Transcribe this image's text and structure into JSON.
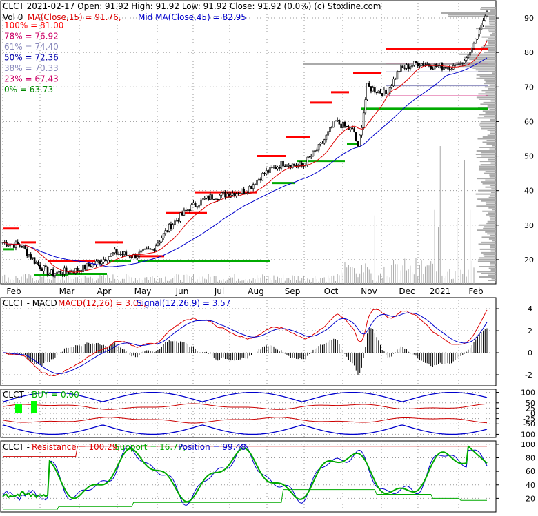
{
  "header": {
    "line1": "CLCT  2021-02-17 Open: 91.92  High: 91.92  Low: 91.92  Close: 91.92 (0.0%)  (c) Stoxline.com",
    "vol": "Vol 0",
    "ma_fast_label": "MA(Close,15) = 91.76,",
    "ma_slow_label": "Mid MA(Close,45) = 82.95"
  },
  "fib_levels": [
    {
      "label": "100% = 81.00",
      "color": "#ff0000"
    },
    {
      "label": "78% = 76.92",
      "color": "#cc0066"
    },
    {
      "label": "61% = 74.40",
      "color": "#8888bb"
    },
    {
      "label": "50% = 72.36",
      "color": "#0000aa"
    },
    {
      "label": "38% = 70.33",
      "color": "#8888bb"
    },
    {
      "label": "23% = 67.43",
      "color": "#cc0066"
    },
    {
      "label": "0% = 63.73",
      "color": "#008800"
    }
  ],
  "colors": {
    "ma_fast": "#dd0000",
    "ma_slow": "#0000cc",
    "resistance": "#ff0000",
    "support": "#00aa00",
    "grid": "#999999",
    "buy_marker": "#00ff00"
  },
  "chart_data": [
    {
      "type": "line",
      "panel": "price",
      "x_tick_labels": [
        "Feb",
        "Mar",
        "Apr",
        "May",
        "Jun",
        "Jul",
        "Aug",
        "Sep",
        "Oct",
        "Nov",
        "Dec",
        "2021",
        "Feb"
      ],
      "y_ticks": [
        20,
        30,
        40,
        50,
        60,
        70,
        80,
        90
      ],
      "ylim": [
        13,
        95
      ],
      "series": [
        {
          "name": "Close",
          "x": [
            0,
            4,
            8,
            12,
            16,
            20,
            24,
            28,
            32,
            36,
            40,
            44,
            48,
            52
          ],
          "y": [
            24,
            20,
            16,
            17,
            21,
            23,
            38,
            40,
            45,
            52,
            64,
            75,
            77,
            91.92
          ]
        },
        {
          "name": "MA(Close,15)",
          "x": [
            0,
            4,
            8,
            12,
            16,
            20,
            24,
            28,
            32,
            36,
            40,
            44,
            48,
            52
          ],
          "y": [
            25,
            22,
            18,
            17,
            20,
            22,
            33,
            39,
            43,
            50,
            60,
            71,
            77,
            91.76
          ]
        },
        {
          "name": "Mid MA(Close,45)",
          "x": [
            0,
            4,
            8,
            12,
            16,
            20,
            24,
            28,
            32,
            36,
            40,
            44,
            48,
            52
          ],
          "y": [
            26,
            24,
            20,
            18,
            19,
            21,
            27,
            34,
            39,
            45,
            55,
            64,
            72,
            82.95
          ]
        }
      ]
    },
    {
      "type": "line",
      "panel": "macd",
      "label": "MACD(12,26) = 3.01,",
      "signal_label": "Signal(12,26,9) = 3.57",
      "y_ticks": [
        -2,
        0,
        2,
        4
      ],
      "ylim": [
        -3,
        5
      ],
      "series": [
        {
          "name": "MACD",
          "x": [
            0,
            4,
            8,
            12,
            16,
            20,
            24,
            28,
            32,
            36,
            40,
            44,
            48,
            52
          ],
          "y": [
            0,
            -1.5,
            -1,
            1,
            1.8,
            3,
            2.5,
            2,
            3,
            2,
            4,
            2,
            4.5,
            3.01
          ]
        },
        {
          "name": "Signal",
          "x": [
            0,
            4,
            8,
            12,
            16,
            20,
            24,
            28,
            32,
            36,
            40,
            44,
            48,
            52
          ],
          "y": [
            0.5,
            -1,
            -1.5,
            0.5,
            1.5,
            2.8,
            2.7,
            2.1,
            2.6,
            2.4,
            3.5,
            2.4,
            3.8,
            3.57
          ]
        }
      ]
    },
    {
      "type": "line",
      "panel": "buy",
      "label": "BUY = 0.00",
      "y_ticks": [
        -100,
        -50,
        -25,
        0,
        25,
        50,
        100
      ],
      "ylim": [
        -115,
        115
      ]
    },
    {
      "type": "line",
      "panel": "sr",
      "resistance_label": "Resistance = 100.29,",
      "support_label": "Support = 16.77,",
      "position_label": "Position = 99.48",
      "y_ticks": [
        20,
        40,
        60,
        80,
        100
      ],
      "ylim": [
        0,
        105
      ]
    }
  ],
  "panel_titles": {
    "macd": "CLCT - MACD",
    "buy": "CLCT -",
    "sr": "CLCT -"
  }
}
